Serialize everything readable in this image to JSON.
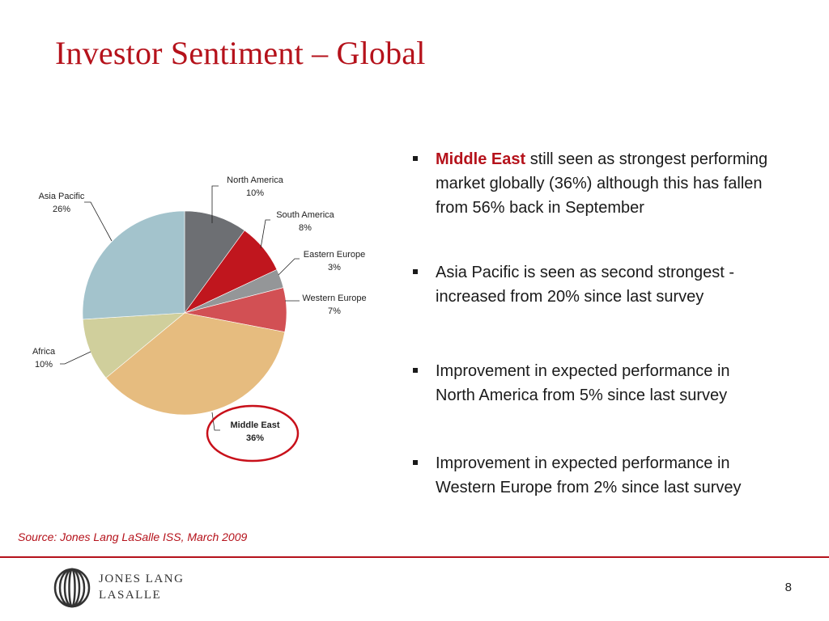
{
  "slide": {
    "title": "Investor Sentiment – Global",
    "source": "Source:  Jones Lang LaSalle ISS, March 2009",
    "page_number": "8"
  },
  "chart_data": {
    "type": "pie",
    "slices": [
      {
        "label": "North America",
        "value": 10,
        "pct": "10%",
        "color": "#6d6f73"
      },
      {
        "label": "South America",
        "value": 8,
        "pct": "8%",
        "color": "#c0161e"
      },
      {
        "label": "Eastern Europe",
        "value": 3,
        "pct": "3%",
        "color": "#949698"
      },
      {
        "label": "Western Europe",
        "value": 7,
        "pct": "7%",
        "color": "#d25054"
      },
      {
        "label": "Middle East",
        "value": 36,
        "pct": "36%",
        "color": "#e6bc7f",
        "highlight": true
      },
      {
        "label": "Africa",
        "value": 10,
        "pct": "10%",
        "color": "#d0cf9c"
      },
      {
        "label": "Asia Pacific",
        "value": 26,
        "pct": "26%",
        "color": "#a3c3cc"
      }
    ],
    "highlight_color": "#c8101a"
  },
  "bullets": [
    {
      "highlight": "Middle East",
      "text": " still seen as strongest performing market globally (36%) although this has fallen from 56% back in September"
    },
    {
      "highlight": "",
      "text": "Asia Pacific is seen as second strongest - increased from 20% since last survey"
    },
    {
      "highlight": "",
      "text": "Improvement in expected performance in North America from 5% since last survey"
    },
    {
      "highlight": "",
      "text": "Improvement in expected performance in Western Europe from 2% since last survey"
    }
  ],
  "logo": {
    "line1": "Jones Lang",
    "line2": "LaSalle"
  },
  "colors": {
    "brand_red": "#b5121b"
  }
}
